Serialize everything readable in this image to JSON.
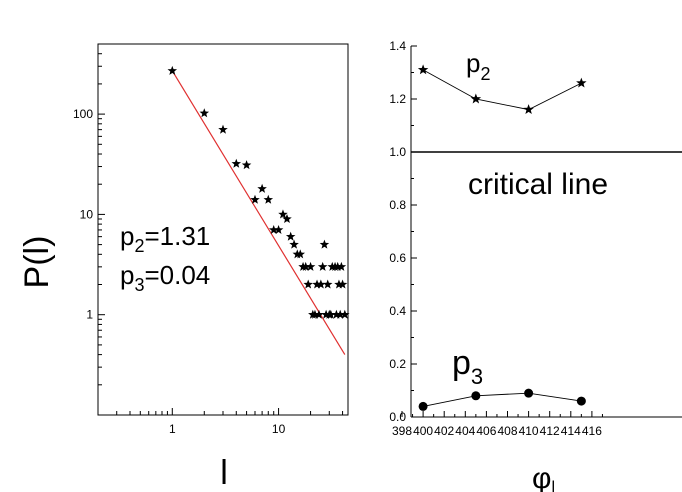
{
  "chart_data": [
    {
      "type": "scatter",
      "scale": "log-log",
      "xlabel": "l",
      "ylabel": "P(l)",
      "xlim": [
        0.2,
        45
      ],
      "ylim": [
        0.1,
        500
      ],
      "x_ticks": [
        1,
        10
      ],
      "x_tick_labels": [
        "1",
        "10"
      ],
      "y_ticks": [
        1,
        10,
        100
      ],
      "y_tick_labels": [
        "1",
        "10",
        "100"
      ],
      "annotations": [
        {
          "base": "p",
          "sub": "2",
          "rest": "=1.31"
        },
        {
          "base": "p",
          "sub": "3",
          "rest": "=0.04"
        }
      ],
      "points": [
        {
          "x": 1,
          "y": 270
        },
        {
          "x": 2,
          "y": 102
        },
        {
          "x": 3,
          "y": 70
        },
        {
          "x": 4,
          "y": 32
        },
        {
          "x": 5,
          "y": 31
        },
        {
          "x": 6,
          "y": 14
        },
        {
          "x": 7,
          "y": 18
        },
        {
          "x": 8,
          "y": 14
        },
        {
          "x": 9,
          "y": 7
        },
        {
          "x": 10,
          "y": 7
        },
        {
          "x": 11,
          "y": 10
        },
        {
          "x": 12,
          "y": 9
        },
        {
          "x": 13,
          "y": 6
        },
        {
          "x": 14,
          "y": 5
        },
        {
          "x": 15,
          "y": 4
        },
        {
          "x": 16,
          "y": 4
        },
        {
          "x": 17,
          "y": 3
        },
        {
          "x": 18,
          "y": 3
        },
        {
          "x": 19,
          "y": 2
        },
        {
          "x": 20,
          "y": 3
        },
        {
          "x": 21,
          "y": 1
        },
        {
          "x": 22,
          "y": 1
        },
        {
          "x": 23,
          "y": 2
        },
        {
          "x": 24,
          "y": 1
        },
        {
          "x": 25,
          "y": 2
        },
        {
          "x": 26,
          "y": 3
        },
        {
          "x": 27,
          "y": 5
        },
        {
          "x": 28,
          "y": 1
        },
        {
          "x": 29,
          "y": 2
        },
        {
          "x": 30,
          "y": 1
        },
        {
          "x": 31,
          "y": 1
        },
        {
          "x": 32,
          "y": 3
        },
        {
          "x": 34,
          "y": 3
        },
        {
          "x": 35,
          "y": 1
        },
        {
          "x": 36,
          "y": 3
        },
        {
          "x": 37,
          "y": 2
        },
        {
          "x": 38,
          "y": 1
        },
        {
          "x": 39,
          "y": 3
        },
        {
          "x": 40,
          "y": 2
        },
        {
          "x": 42,
          "y": 1
        }
      ],
      "fit_line": {
        "color": "#e03030",
        "x": [
          1,
          42
        ],
        "y": [
          270,
          0.4
        ]
      }
    },
    {
      "type": "line",
      "xlabel": "φ",
      "xlabel_sub": "l",
      "xlim": [
        398,
        417
      ],
      "ylim": [
        0,
        1.4
      ],
      "x_ticks": [
        398,
        400,
        402,
        404,
        406,
        408,
        410,
        412,
        414,
        416
      ],
      "y_ticks": [
        0.0,
        0.2,
        0.4,
        0.6,
        0.8,
        1.0,
        1.2,
        1.4
      ],
      "y_tick_labels": [
        "0.0",
        "0.2",
        "0.4",
        "0.6",
        "0.8",
        "1.0",
        "1.2",
        "1.4"
      ],
      "reference_line": {
        "y": 1.0,
        "label": "critical line"
      },
      "series": [
        {
          "name": "p",
          "name_sub": "2",
          "marker": "star",
          "x": [
            400,
            405,
            410,
            415
          ],
          "y": [
            1.31,
            1.2,
            1.16,
            1.26
          ]
        },
        {
          "name": "p",
          "name_sub": "3",
          "marker": "circle",
          "x": [
            400,
            405,
            410,
            415
          ],
          "y": [
            0.04,
            0.08,
            0.09,
            0.06
          ]
        }
      ]
    }
  ]
}
